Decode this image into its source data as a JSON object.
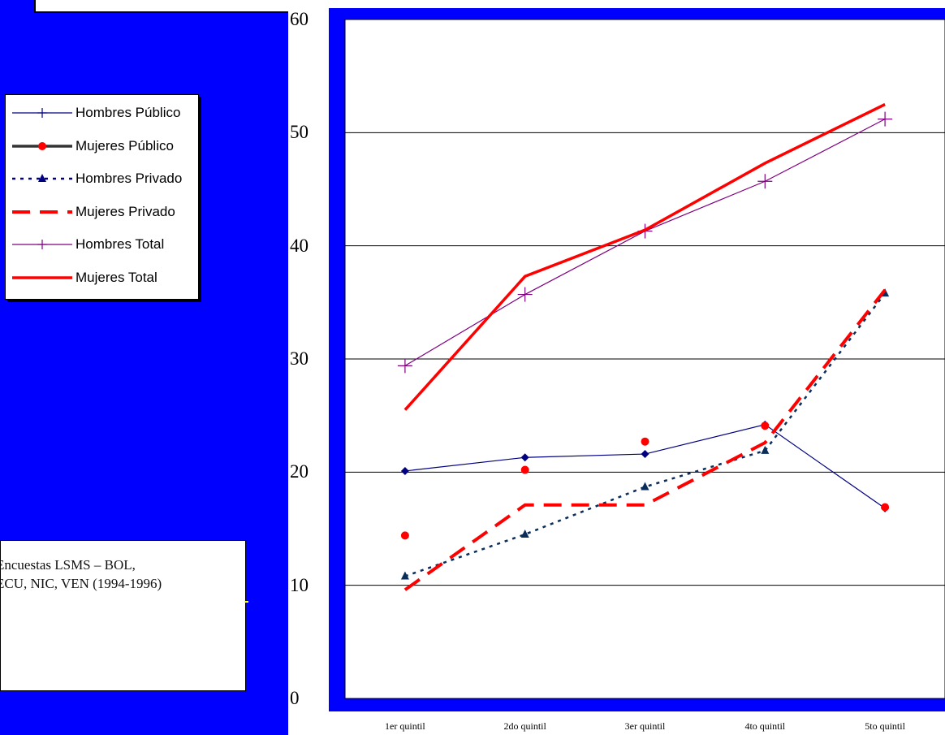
{
  "source_note": "Encuestas LSMS – BOL,\nECU, NIC, VEN (1994-1996)",
  "legend": [
    {
      "label": "Hombres Público",
      "color": "#000080",
      "style": "solid-thin",
      "marker": "plus"
    },
    {
      "label": "Mujeres Público",
      "color": "#ff0000",
      "style": "solid-thick-dark",
      "marker": "circle"
    },
    {
      "label": "Hombres Privado",
      "color": "#000080",
      "style": "dotted",
      "marker": "triangle"
    },
    {
      "label": "Mujeres Privado",
      "color": "#ff0000",
      "style": "dashed",
      "marker": "none"
    },
    {
      "label": "Hombres Total",
      "color": "#800080",
      "style": "solid-thin",
      "marker": "plus"
    },
    {
      "label": "Mujeres Total",
      "color": "#ff0000",
      "style": "solid-thick",
      "marker": "none"
    }
  ],
  "chart_data": {
    "type": "line",
    "categories": [
      "1er quintil",
      "2do quintil",
      "3er quintil",
      "4to quintil",
      "5to quintil"
    ],
    "ylim": [
      0,
      60
    ],
    "yticks": [
      "0",
      "10",
      "20",
      "30",
      "40",
      "50",
      "60"
    ],
    "grid": true,
    "legend_position": "left",
    "series": [
      {
        "name": "Hombres Público",
        "values": [
          20.1,
          21.3,
          21.6,
          24.2,
          16.8
        ],
        "color": "#000080"
      },
      {
        "name": "Mujeres Público",
        "values": [
          14.4,
          20.2,
          22.7,
          24.1,
          16.9
        ],
        "color": "#ff0000"
      },
      {
        "name": "Hombres Privado",
        "values": [
          10.8,
          14.5,
          18.7,
          21.9,
          35.8
        ],
        "color": "#0a2d5a"
      },
      {
        "name": "Mujeres Privado",
        "values": [
          9.6,
          17.1,
          17.1,
          22.6,
          36.1
        ],
        "color": "#ff0000"
      },
      {
        "name": "Hombres Total",
        "values": [
          29.4,
          35.7,
          41.3,
          45.7,
          51.2
        ],
        "color": "#800080"
      },
      {
        "name": "Mujeres Total",
        "values": [
          25.5,
          37.3,
          41.4,
          47.3,
          52.5
        ],
        "color": "#ff0000"
      }
    ]
  }
}
